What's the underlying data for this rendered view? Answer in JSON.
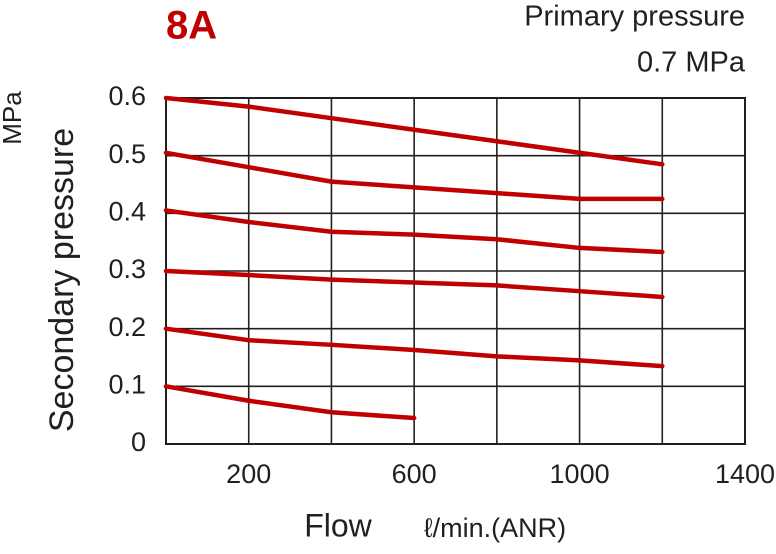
{
  "chart_data": {
    "type": "line",
    "title": "8A",
    "annotations": [
      "Primary pressure",
      "0.7 MPa"
    ],
    "y_label": "Secondary pressure",
    "y_unit": "MPa",
    "x_label": "Flow",
    "x_unit": "ℓ/min.(ANR)",
    "xlim": [
      0,
      1400
    ],
    "xticks": [
      200,
      600,
      1000,
      1400
    ],
    "ylim": [
      0,
      0.6
    ],
    "yticks": [
      0,
      0.1,
      0.2,
      0.3,
      0.4,
      0.5,
      0.6
    ],
    "grid": true,
    "series": [
      {
        "color": "#c00000",
        "x": [
          0,
          200,
          400,
          600,
          800,
          1000,
          1200
        ],
        "values": [
          0.6,
          0.585,
          0.565,
          0.545,
          0.525,
          0.505,
          0.485
        ]
      },
      {
        "color": "#c00000",
        "x": [
          0,
          200,
          400,
          600,
          800,
          1000,
          1200
        ],
        "values": [
          0.505,
          0.48,
          0.455,
          0.445,
          0.435,
          0.425,
          0.425
        ]
      },
      {
        "color": "#c00000",
        "x": [
          0,
          200,
          400,
          600,
          800,
          1000,
          1200
        ],
        "values": [
          0.405,
          0.385,
          0.368,
          0.363,
          0.355,
          0.34,
          0.333
        ]
      },
      {
        "color": "#c00000",
        "x": [
          0,
          200,
          400,
          600,
          800,
          1000,
          1200
        ],
        "values": [
          0.3,
          0.293,
          0.285,
          0.28,
          0.275,
          0.265,
          0.255
        ]
      },
      {
        "color": "#c00000",
        "x": [
          0,
          200,
          400,
          600,
          800,
          1000,
          1200
        ],
        "values": [
          0.2,
          0.18,
          0.172,
          0.163,
          0.152,
          0.145,
          0.135
        ]
      },
      {
        "color": "#c00000",
        "x": [
          0,
          200,
          400,
          600
        ],
        "values": [
          0.1,
          0.075,
          0.055,
          0.045
        ]
      }
    ]
  }
}
